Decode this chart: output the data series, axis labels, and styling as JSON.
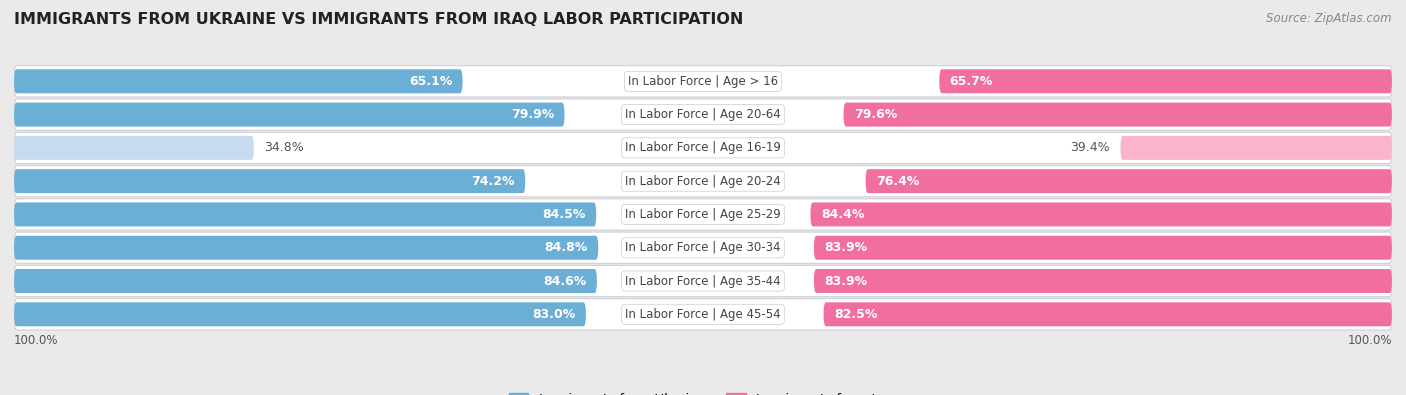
{
  "title": "IMMIGRANTS FROM UKRAINE VS IMMIGRANTS FROM IRAQ LABOR PARTICIPATION",
  "source": "Source: ZipAtlas.com",
  "categories": [
    "In Labor Force | Age > 16",
    "In Labor Force | Age 20-64",
    "In Labor Force | Age 16-19",
    "In Labor Force | Age 20-24",
    "In Labor Force | Age 25-29",
    "In Labor Force | Age 30-34",
    "In Labor Force | Age 35-44",
    "In Labor Force | Age 45-54"
  ],
  "ukraine_values": [
    65.1,
    79.9,
    34.8,
    74.2,
    84.5,
    84.8,
    84.6,
    83.0
  ],
  "iraq_values": [
    65.7,
    79.6,
    39.4,
    76.4,
    84.4,
    83.9,
    83.9,
    82.5
  ],
  "ukraine_color": "#6baed6",
  "ukraine_color_light": "#c6dbef",
  "iraq_color": "#f06fa0",
  "iraq_color_light": "#fbb4ca",
  "background_color": "#eaeaea",
  "row_bg_color": "#ffffff",
  "row_border_color": "#d0d0d8",
  "legend_ukraine": "Immigrants from Ukraine",
  "legend_iraq": "Immigrants from Iraq",
  "label_fontsize": 9.0,
  "category_fontsize": 8.5,
  "title_fontsize": 11.5,
  "footer_value": "100.0%"
}
